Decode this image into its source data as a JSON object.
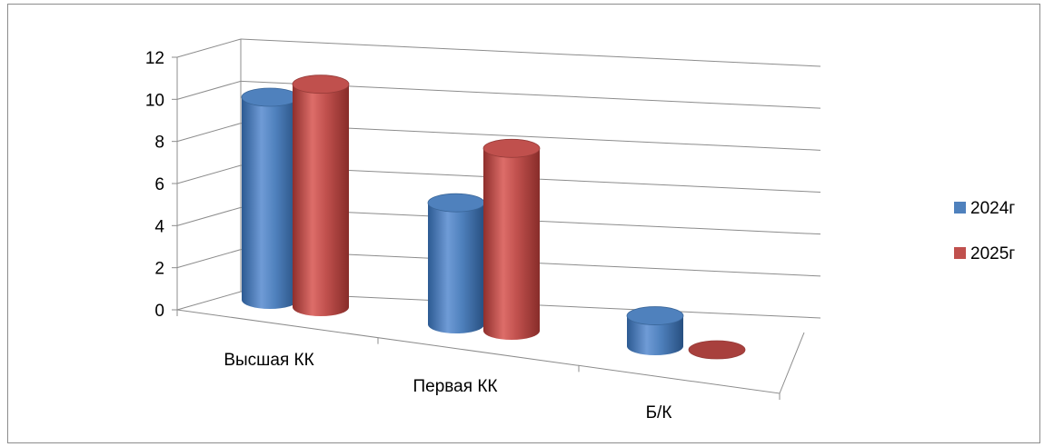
{
  "chart_data": {
    "type": "bar",
    "categories": [
      "Высшая КК",
      "Первая КК",
      "Б/К"
    ],
    "series": [
      {
        "name": "2024г",
        "values": [
          10,
          6,
          1.5
        ],
        "color": "#4f81bd"
      },
      {
        "name": "2025г",
        "values": [
          11,
          9,
          0
        ],
        "color": "#c0504d"
      }
    ],
    "ylim": [
      0,
      12
    ],
    "yticks": [
      0,
      2,
      4,
      6,
      8,
      10,
      12
    ],
    "grid": true,
    "legend": "right",
    "style": "3d-cylinder"
  }
}
